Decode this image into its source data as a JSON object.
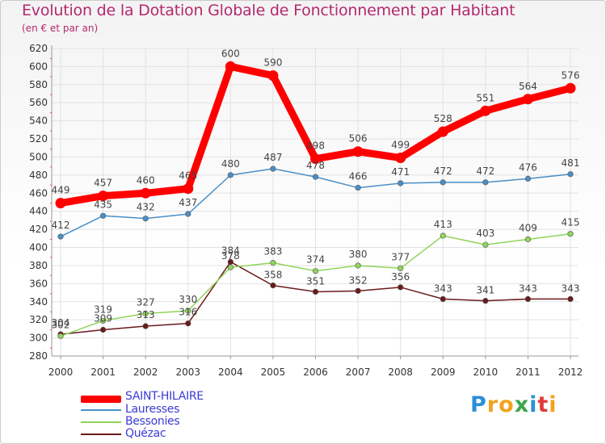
{
  "title": "Evolution de la Dotation Globale de Fonctionnement par Habitant",
  "subtitle": "(en € et par an)",
  "chart_data": {
    "type": "line",
    "title": "Evolution de la Dotation Globale de Fonctionnement par Habitant",
    "subtitle": "(en € et par an)",
    "xlabel": "",
    "ylabel": "",
    "categories": [
      "2000",
      "2001",
      "2002",
      "2003",
      "2004",
      "2005",
      "2006",
      "2007",
      "2008",
      "2009",
      "2010",
      "2011",
      "2012"
    ],
    "y_ticks": [
      280,
      300,
      320,
      340,
      360,
      380,
      400,
      420,
      440,
      460,
      480,
      500,
      520,
      540,
      560,
      580,
      600,
      620
    ],
    "ylim": [
      280,
      620
    ],
    "grid": true,
    "legend_position": "bottom-left",
    "series": [
      {
        "name": "SAINT-HILAIRE",
        "color": "#ff0000",
        "values": [
          449,
          457,
          460,
          465,
          600,
          590,
          498,
          506,
          499,
          528,
          551,
          564,
          576
        ]
      },
      {
        "name": "Lauresses",
        "color": "#4a8fc7",
        "values": [
          412,
          435,
          432,
          437,
          480,
          487,
          478,
          466,
          471,
          472,
          472,
          476,
          481
        ]
      },
      {
        "name": "Bessonies",
        "color": "#8fd45a",
        "values": [
          302,
          319,
          327,
          330,
          378,
          383,
          374,
          380,
          377,
          413,
          403,
          409,
          415
        ]
      },
      {
        "name": "Quézac",
        "color": "#6b1a1a",
        "values": [
          304,
          309,
          313,
          316,
          384,
          358,
          351,
          352,
          356,
          343,
          341,
          343,
          343
        ]
      }
    ]
  },
  "legend": [
    {
      "label": "SAINT-HILAIRE"
    },
    {
      "label": "Lauresses"
    },
    {
      "label": "Bessonies"
    },
    {
      "label": "Quézac"
    }
  ],
  "logo": {
    "letters": [
      "P",
      "r",
      "o",
      "x",
      "i",
      "t",
      "i"
    ],
    "colors": [
      "#2b8fd6",
      "#f2a21c",
      "#f2a21c",
      "#3aa64a",
      "#2b8fd6",
      "#e23a3a",
      "#f2a21c"
    ]
  }
}
